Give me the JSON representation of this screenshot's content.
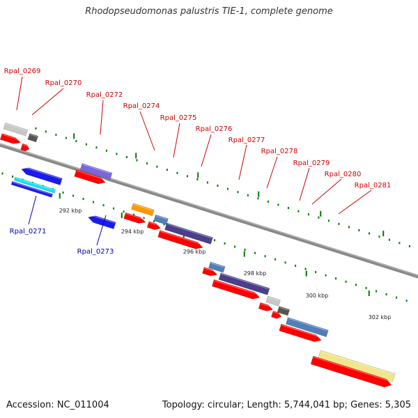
{
  "title": "Rhodopseudomonas palustris TIE-1, complete genome",
  "footer": {
    "accession": "Accession: NC_011004",
    "info": "Topology: circular; Length: 5,744,041 bp; Genes: 5,305"
  },
  "colors": {
    "background": "#ffffff",
    "backbone": "#888888",
    "tick": "#007700",
    "label_upper": "#cc0000",
    "label_lower": "#0000aa",
    "cds": "#ff0000"
  },
  "scale_labels": [
    "292 kbp",
    "294 kbp",
    "296 kbp",
    "298 kbp",
    "300 kbp",
    "302 kbp"
  ],
  "genes": [
    {
      "id": "Rpal_0269",
      "strand": "forward"
    },
    {
      "id": "Rpal_0270",
      "strand": "forward"
    },
    {
      "id": "Rpal_0271",
      "strand": "reverse"
    },
    {
      "id": "Rpal_0272",
      "strand": "forward"
    },
    {
      "id": "Rpal_0273",
      "strand": "reverse"
    },
    {
      "id": "Rpal_0274",
      "strand": "forward"
    },
    {
      "id": "Rpal_0275",
      "strand": "forward"
    },
    {
      "id": "Rpal_0276",
      "strand": "forward"
    },
    {
      "id": "Rpal_0277",
      "strand": "forward"
    },
    {
      "id": "Rpal_0278",
      "strand": "forward"
    },
    {
      "id": "Rpal_0279",
      "strand": "forward"
    },
    {
      "id": "Rpal_0280",
      "strand": "forward"
    },
    {
      "id": "Rpal_0281",
      "strand": "forward"
    }
  ]
}
